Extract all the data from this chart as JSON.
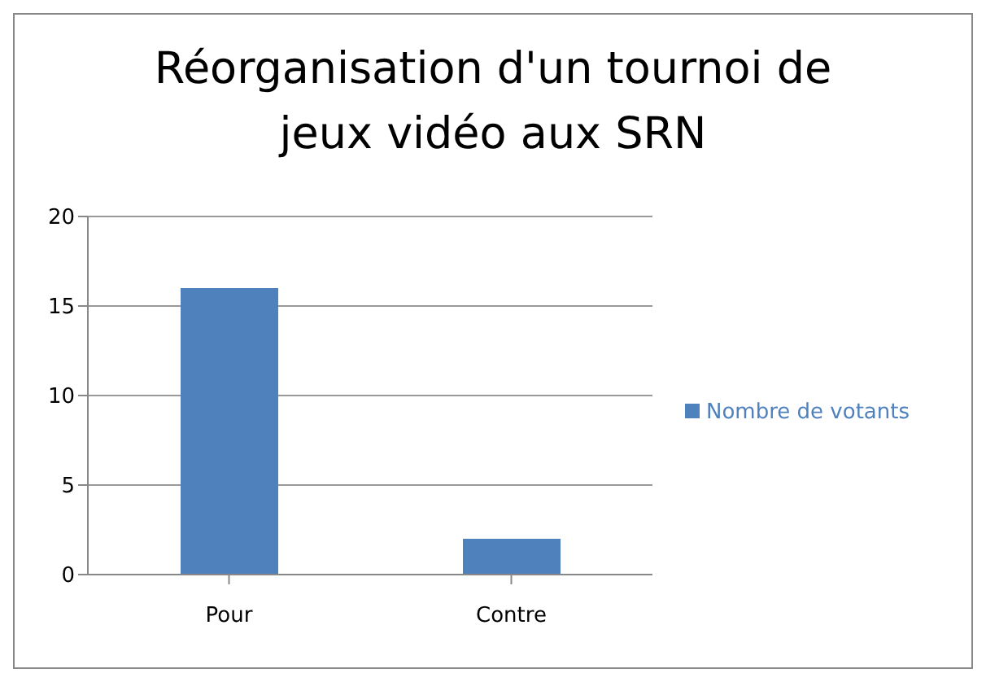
{
  "chart_data": {
    "type": "bar",
    "title": "Réorganisation d'un tournoi de jeux vidéo aux SRN",
    "categories": [
      "Pour",
      "Contre"
    ],
    "series": [
      {
        "name": "Nombre de votants",
        "color": "#4f81bd",
        "values": [
          16,
          2
        ]
      }
    ],
    "ylim": [
      0,
      20
    ],
    "yticks": [
      0,
      5,
      10,
      15,
      20
    ],
    "grid": "y",
    "legend": "right"
  }
}
